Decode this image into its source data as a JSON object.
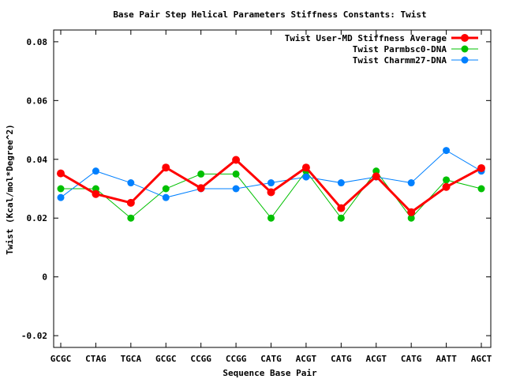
{
  "chart_data": {
    "type": "line",
    "title": "Base Pair Step Helical Parameters Stiffness Constants: Twist",
    "xlabel": "Sequence Base Pair",
    "ylabel": "Twist (Kcal/mol*Degree^2)",
    "categories": [
      "GCGC",
      "CTAG",
      "TGCA",
      "GCGC",
      "CCGG",
      "CCGG",
      "CATG",
      "ACGT",
      "CATG",
      "ACGT",
      "CATG",
      "AATT",
      "AGCT"
    ],
    "yticks": [
      "0.08",
      "0.06",
      "0.04",
      "0.02",
      "0",
      "-0.02"
    ],
    "ylim": [
      -0.024,
      0.084
    ],
    "legend_position": "top-right",
    "grid": false,
    "series": [
      {
        "name": "Twist User-MD Stiffness Average",
        "color": "#ff0000",
        "values": [
          0.0352,
          0.0282,
          0.0252,
          0.0372,
          0.0302,
          0.0398,
          0.0288,
          0.0372,
          0.0234,
          0.0342,
          0.022,
          0.0306,
          0.037
        ]
      },
      {
        "name": "Twist Parmbsc0-DNA",
        "color": "#00c000",
        "values": [
          0.03,
          0.03,
          0.02,
          0.03,
          0.035,
          0.035,
          0.02,
          0.036,
          0.02,
          0.036,
          0.02,
          0.033,
          0.03
        ]
      },
      {
        "name": "Twist Charmm27-DNA",
        "color": "#0080ff",
        "values": [
          0.027,
          0.036,
          0.032,
          0.027,
          0.03,
          0.03,
          0.032,
          0.034,
          0.032,
          0.034,
          0.032,
          0.043,
          0.036
        ]
      }
    ]
  }
}
